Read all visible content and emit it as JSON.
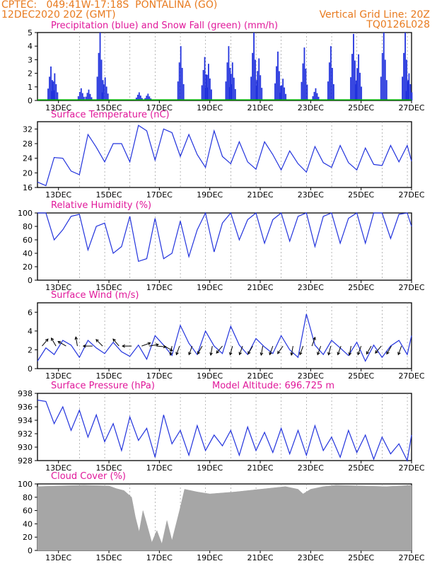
{
  "header": {
    "line1_left": "CPTEC:   049:41W-17:18S  PONTALINA (GO)",
    "line2_left": "12DEC2020 20Z (GMT)",
    "line2_right": "Vertical Grid Line: 20Z",
    "line3_right": "TQ0126L028"
  },
  "colors": {
    "header": "#e87a1e",
    "title": "#e0189a",
    "series": "#2233dd",
    "snow": "#00aa00",
    "cloud": "#a6a6a6"
  },
  "x_axis": {
    "ticks": [
      "13DEC",
      "15DEC",
      "17DEC",
      "19DEC",
      "21DEC",
      "23DEC",
      "25DEC",
      "27DEC"
    ],
    "tick_days": [
      1,
      3,
      5,
      7,
      9,
      11,
      13,
      15
    ],
    "day_range": [
      0.167,
      15.0
    ]
  },
  "chart_data": [
    {
      "type": "bar",
      "title": "Precipitation (blue) and Snow Fall (green) (mm/h)",
      "ylim": [
        0,
        5
      ],
      "yticks": [
        0,
        1,
        2,
        3,
        4,
        5
      ],
      "series": [
        {
          "color": "blue",
          "peaks": [
            [
              0.7,
              2.5
            ],
            [
              0.85,
              2.0
            ],
            [
              1.9,
              0.9
            ],
            [
              2.2,
              0.8
            ],
            [
              2.65,
              5.0
            ],
            [
              2.85,
              1.7
            ],
            [
              4.2,
              0.6
            ],
            [
              4.55,
              0.5
            ],
            [
              5.85,
              4.0
            ],
            [
              6.8,
              3.2
            ],
            [
              6.95,
              2.7
            ],
            [
              7.75,
              4.0
            ],
            [
              7.9,
              2.8
            ],
            [
              8.75,
              5.0
            ],
            [
              8.95,
              3.1
            ],
            [
              9.7,
              3.6
            ],
            [
              9.9,
              1.6
            ],
            [
              10.75,
              3.9
            ],
            [
              11.2,
              0.9
            ],
            [
              11.8,
              4.0
            ],
            [
              12.7,
              4.9
            ],
            [
              12.9,
              3.4
            ],
            [
              13.9,
              5.0
            ],
            [
              14.75,
              5.0
            ],
            [
              14.9,
              2.0
            ]
          ]
        },
        {
          "color": "green",
          "values": []
        }
      ]
    },
    {
      "type": "line",
      "title": "Surface Temperature (nC)",
      "ylim": [
        16,
        34
      ],
      "yticks": [
        16,
        20,
        24,
        28,
        32
      ],
      "series": [
        {
          "x": [
            0.167,
            0.5,
            0.83,
            1.17,
            1.5,
            1.83,
            2.17,
            2.5,
            2.83,
            3.17,
            3.5,
            3.83,
            4.17,
            4.5,
            4.83,
            5.17,
            5.5,
            5.83,
            6.17,
            6.5,
            6.83,
            7.17,
            7.5,
            7.83,
            8.17,
            8.5,
            8.83,
            9.17,
            9.5,
            9.83,
            10.17,
            10.5,
            10.83,
            11.17,
            11.5,
            11.83,
            12.17,
            12.5,
            12.83,
            13.17,
            13.5,
            13.83,
            14.17,
            14.5,
            14.83,
            15.0
          ],
          "y": [
            17.5,
            16.5,
            24.2,
            24,
            20.5,
            19.5,
            30.5,
            27,
            23,
            28,
            28,
            23,
            33,
            31.5,
            23.5,
            32,
            31,
            24.5,
            30.5,
            25,
            21.5,
            31.5,
            24.5,
            22.5,
            28.5,
            23,
            21,
            28.5,
            25,
            20.8,
            26,
            22.5,
            20.2,
            27.2,
            22.8,
            21.5,
            27.5,
            22.8,
            20.8,
            26.8,
            22.3,
            22,
            27.5,
            23,
            27.5,
            23.2
          ]
        }
      ]
    },
    {
      "type": "line",
      "title": "Relative Humidity (%)",
      "ylim": [
        0,
        100
      ],
      "yticks": [
        0,
        20,
        40,
        60,
        80,
        100
      ],
      "series": [
        {
          "x": [
            0.167,
            0.5,
            0.83,
            1.17,
            1.5,
            1.83,
            2.17,
            2.5,
            2.83,
            3.17,
            3.5,
            3.83,
            4.17,
            4.5,
            4.83,
            5.17,
            5.5,
            5.83,
            6.17,
            6.5,
            6.83,
            7.17,
            7.5,
            7.83,
            8.17,
            8.5,
            8.83,
            9.17,
            9.5,
            9.83,
            10.17,
            10.5,
            10.83,
            11.17,
            11.5,
            11.83,
            12.17,
            12.5,
            12.83,
            13.17,
            13.5,
            13.83,
            14.17,
            14.5,
            14.83,
            15.0
          ],
          "y": [
            100,
            100,
            60,
            75,
            95,
            98,
            45,
            80,
            85,
            40,
            50,
            95,
            28,
            32,
            92,
            32,
            40,
            88,
            35,
            75,
            100,
            42,
            85,
            100,
            60,
            90,
            100,
            55,
            90,
            100,
            58,
            95,
            100,
            50,
            95,
            100,
            55,
            92,
            100,
            55,
            100,
            100,
            62,
            98,
            100,
            80
          ]
        }
      ]
    },
    {
      "type": "line",
      "title": "Surface Wind (m/s)",
      "ylim": [
        0,
        7
      ],
      "yticks": [
        0,
        2,
        4,
        6
      ],
      "series": [
        {
          "x": [
            0.167,
            0.5,
            0.83,
            1.17,
            1.5,
            1.83,
            2.17,
            2.5,
            2.83,
            3.17,
            3.5,
            3.83,
            4.17,
            4.5,
            4.83,
            5.17,
            5.5,
            5.83,
            6.17,
            6.5,
            6.83,
            7.17,
            7.5,
            7.83,
            8.17,
            8.5,
            8.83,
            9.17,
            9.5,
            9.83,
            10.17,
            10.5,
            10.83,
            11.17,
            11.5,
            11.83,
            12.17,
            12.5,
            12.83,
            13.17,
            13.5,
            13.83,
            14.17,
            14.5,
            14.83,
            15.0
          ],
          "y": [
            0.8,
            2.2,
            1.5,
            3.0,
            2.5,
            1.2,
            3.0,
            2.2,
            1.6,
            2.8,
            1.8,
            1.3,
            2.5,
            1.0,
            3.5,
            2.5,
            1.4,
            4.6,
            2.7,
            1.5,
            4.0,
            2.4,
            1.6,
            4.5,
            2.5,
            1.5,
            3.2,
            2.3,
            1.6,
            3.5,
            2.0,
            1.2,
            5.8,
            2.5,
            1.5,
            3.0,
            2.2,
            1.4,
            2.8,
            0.8,
            2.5,
            1.2,
            2.4,
            3.0,
            1.5,
            3.5
          ]
        }
      ]
    },
    {
      "type": "line",
      "title": "Surface Pressure (hPa)",
      "subtitle": "Model Altitude: 696.725  m",
      "ylim": [
        928,
        938
      ],
      "yticks": [
        928,
        930,
        932,
        934,
        936,
        938
      ],
      "series": [
        {
          "x": [
            0.167,
            0.5,
            0.83,
            1.17,
            1.5,
            1.83,
            2.17,
            2.5,
            2.83,
            3.17,
            3.5,
            3.83,
            4.17,
            4.5,
            4.83,
            5.17,
            5.5,
            5.83,
            6.17,
            6.5,
            6.83,
            7.17,
            7.5,
            7.83,
            8.17,
            8.5,
            8.83,
            9.17,
            9.5,
            9.83,
            10.17,
            10.5,
            10.83,
            11.17,
            11.5,
            11.83,
            12.17,
            12.5,
            12.83,
            13.17,
            13.5,
            13.83,
            14.17,
            14.5,
            14.83,
            15.0
          ],
          "y": [
            937.0,
            936.8,
            933.5,
            936.0,
            932.5,
            935.5,
            931.5,
            934.8,
            930.8,
            933.5,
            929.5,
            934.5,
            931.0,
            932.8,
            928.5,
            934.8,
            930.5,
            932.5,
            928.8,
            933.2,
            929.5,
            931.8,
            930.2,
            932.5,
            928.8,
            933.0,
            929.5,
            932.2,
            929.2,
            932.8,
            929.0,
            932.5,
            928.8,
            933.2,
            929.5,
            931.5,
            928.5,
            932.5,
            929.2,
            931.8,
            928.2,
            931.5,
            929.0,
            930.5,
            928.0,
            931.8
          ]
        }
      ]
    },
    {
      "type": "area",
      "title": "Cloud Cover (%)",
      "ylim": [
        0,
        100
      ],
      "yticks": [
        0,
        20,
        40,
        60,
        80,
        100
      ],
      "series": [
        {
          "x": [
            0.167,
            1.0,
            2.0,
            3.0,
            3.3,
            3.6,
            3.9,
            4.05,
            4.2,
            4.35,
            4.5,
            4.7,
            4.9,
            5.1,
            5.3,
            5.5,
            5.8,
            6.0,
            6.5,
            7.0,
            8.0,
            9.0,
            10.0,
            10.5,
            10.7,
            11.0,
            11.5,
            12.0,
            13.0,
            14.0,
            15.0
          ],
          "y": [
            96,
            97,
            98,
            97,
            93,
            90,
            80,
            50,
            28,
            60,
            40,
            12,
            30,
            10,
            45,
            15,
            60,
            92,
            88,
            85,
            88,
            92,
            96,
            92,
            85,
            92,
            96,
            98,
            97,
            96,
            98
          ]
        }
      ]
    }
  ],
  "extra": {
    "wind_arrows": {
      "description_units": "angle_deg_from_north",
      "items": [
        [
          0.35,
          40
        ],
        [
          0.9,
          330
        ],
        [
          1.3,
          300
        ],
        [
          1.75,
          350
        ],
        [
          2.35,
          270
        ],
        [
          2.75,
          315
        ],
        [
          3.4,
          320
        ],
        [
          3.9,
          270
        ],
        [
          4.3,
          70
        ],
        [
          4.6,
          80
        ],
        [
          4.9,
          95
        ],
        [
          5.2,
          120
        ],
        [
          5.5,
          190
        ],
        [
          5.8,
          200
        ],
        [
          6.3,
          200
        ],
        [
          6.7,
          210
        ],
        [
          7.1,
          190
        ],
        [
          7.5,
          220
        ],
        [
          7.9,
          195
        ],
        [
          8.3,
          200
        ],
        [
          8.7,
          210
        ],
        [
          9.1,
          190
        ],
        [
          9.5,
          200
        ],
        [
          9.9,
          215
        ],
        [
          10.3,
          190
        ],
        [
          10.7,
          200
        ],
        [
          11.05,
          20
        ],
        [
          11.4,
          200
        ],
        [
          11.8,
          195
        ],
        [
          12.2,
          200
        ],
        [
          12.6,
          190
        ],
        [
          13.0,
          200
        ],
        [
          13.4,
          210
        ],
        [
          13.8,
          220
        ],
        [
          14.2,
          210
        ],
        [
          14.6,
          200
        ]
      ]
    }
  }
}
